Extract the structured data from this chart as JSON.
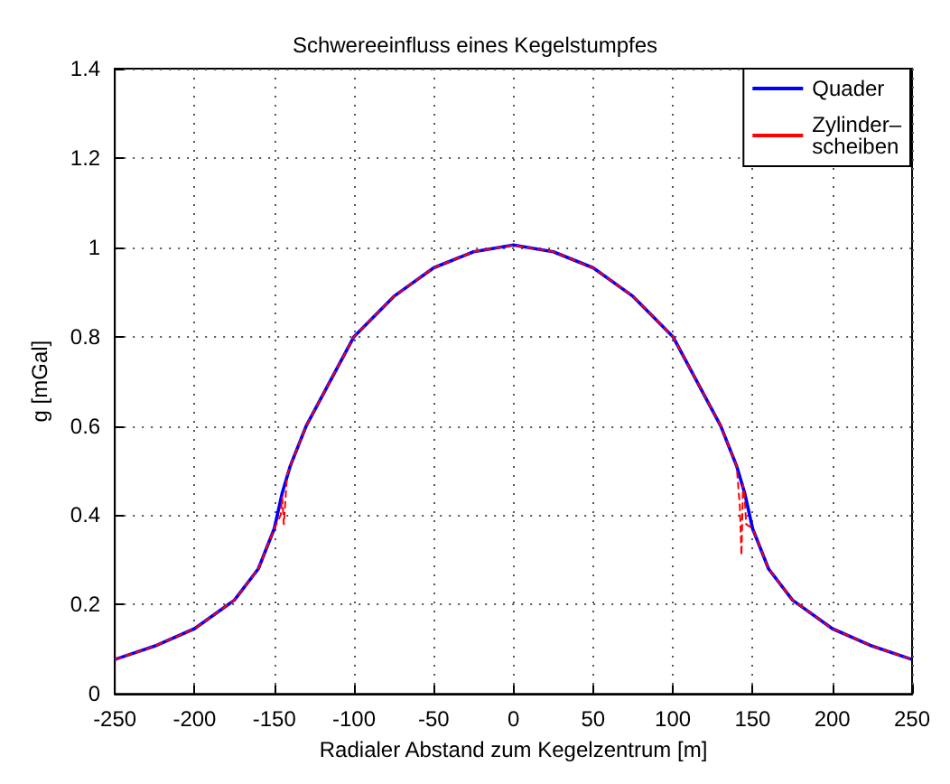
{
  "chart_data": {
    "type": "line",
    "title": "Schwereeinfluss eines Kegelstumpfes",
    "xlabel": "Radialer Abstand zum Kegelzentrum [m]",
    "ylabel": "g [mGal]",
    "xlim": [
      -250,
      250
    ],
    "xticks": [
      -250,
      -200,
      -150,
      -100,
      -50,
      0,
      50,
      100,
      150,
      200,
      250
    ],
    "ylim": [
      0,
      1.4
    ],
    "yticks": [
      0,
      0.2,
      0.4,
      0.6,
      0.8,
      1,
      1.2,
      1.4
    ],
    "grid": true,
    "legend": "top right",
    "series": [
      {
        "name": "Quader",
        "color": "#0000ff",
        "line_style": "solid",
        "x": [
          -250,
          -225,
          -200,
          -175,
          -160,
          -150,
          -145,
          -140,
          -130,
          -115,
          -100,
          -75,
          -50,
          -25,
          0,
          25,
          50,
          75,
          100,
          115,
          130,
          140,
          145,
          150,
          160,
          175,
          200,
          225,
          250
        ],
        "values": [
          0.077,
          0.107,
          0.146,
          0.21,
          0.28,
          0.37,
          0.45,
          0.51,
          0.6,
          0.7,
          0.8,
          0.89,
          0.954,
          0.99,
          1.005,
          0.99,
          0.954,
          0.89,
          0.8,
          0.7,
          0.6,
          0.51,
          0.45,
          0.37,
          0.28,
          0.21,
          0.146,
          0.107,
          0.077
        ]
      },
      {
        "name": "Zylinder–\nscheiben",
        "color": "#ff0000",
        "line_style": "dashed",
        "x": [
          -250,
          -225,
          -200,
          -175,
          -160,
          -150,
          -146,
          -145,
          -144,
          -142,
          -140,
          -130,
          -115,
          -100,
          -75,
          -50,
          -25,
          0,
          25,
          50,
          75,
          100,
          115,
          130,
          140,
          142,
          143,
          144,
          145,
          146,
          150,
          160,
          175,
          200,
          225,
          250
        ],
        "values": [
          0.077,
          0.107,
          0.146,
          0.21,
          0.28,
          0.37,
          0.4,
          0.44,
          0.38,
          0.49,
          0.51,
          0.6,
          0.7,
          0.8,
          0.89,
          0.954,
          0.99,
          1.005,
          0.99,
          0.954,
          0.89,
          0.8,
          0.7,
          0.6,
          0.51,
          0.42,
          0.31,
          0.47,
          0.44,
          0.38,
          0.37,
          0.28,
          0.21,
          0.146,
          0.107,
          0.077
        ]
      }
    ]
  }
}
